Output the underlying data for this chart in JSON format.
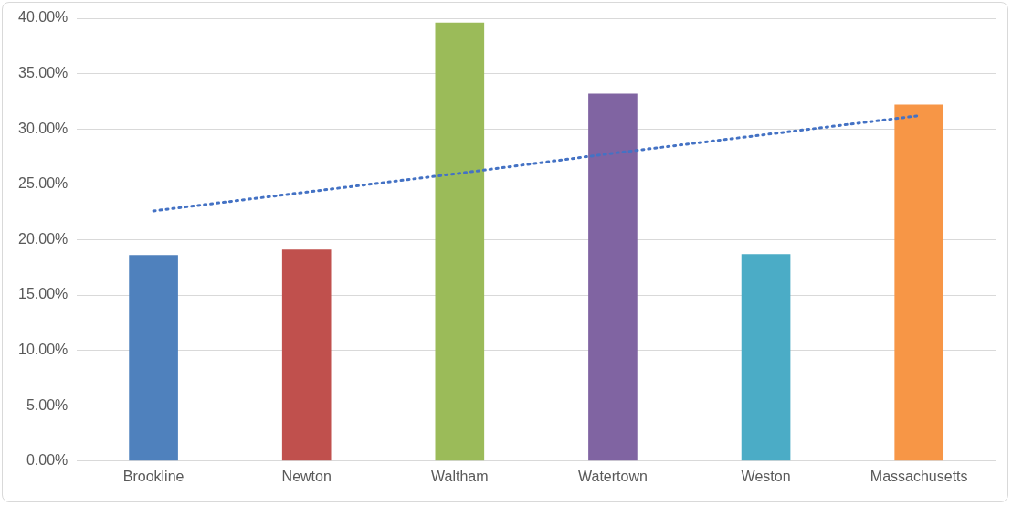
{
  "chart_data": {
    "type": "bar",
    "categories": [
      "Brookline",
      "Newton",
      "Waltham",
      "Watertown",
      "Weston",
      "Massachusetts"
    ],
    "series": [
      {
        "colors": [
          "#4f81bd",
          "#c0504d",
          "#9bbb59",
          "#8064a2",
          "#4bacc6",
          "#f79646"
        ],
        "values": [
          18.6,
          19.1,
          39.6,
          33.2,
          18.7,
          32.2
        ]
      },
      {
        "type": "line",
        "color": "#4472c4",
        "line_style": "dotted",
        "marker": "none",
        "values": [
          22.6,
          24.3,
          26.0,
          27.8,
          29.5,
          31.2
        ]
      }
    ],
    "ylim": [
      0,
      40
    ],
    "yticks": [
      {
        "value": 0,
        "label": "0.00%"
      },
      {
        "value": 5,
        "label": "5.00%"
      },
      {
        "value": 10,
        "label": "10.00%"
      },
      {
        "value": 15,
        "label": "15.00%"
      },
      {
        "value": 20,
        "label": "20.00%"
      },
      {
        "value": 25,
        "label": "25.00%"
      },
      {
        "value": 30,
        "label": "30.00%"
      },
      {
        "value": 35,
        "label": "35.00%"
      },
      {
        "value": 40,
        "label": "40.00%"
      }
    ],
    "grid": "y",
    "legend": false
  }
}
